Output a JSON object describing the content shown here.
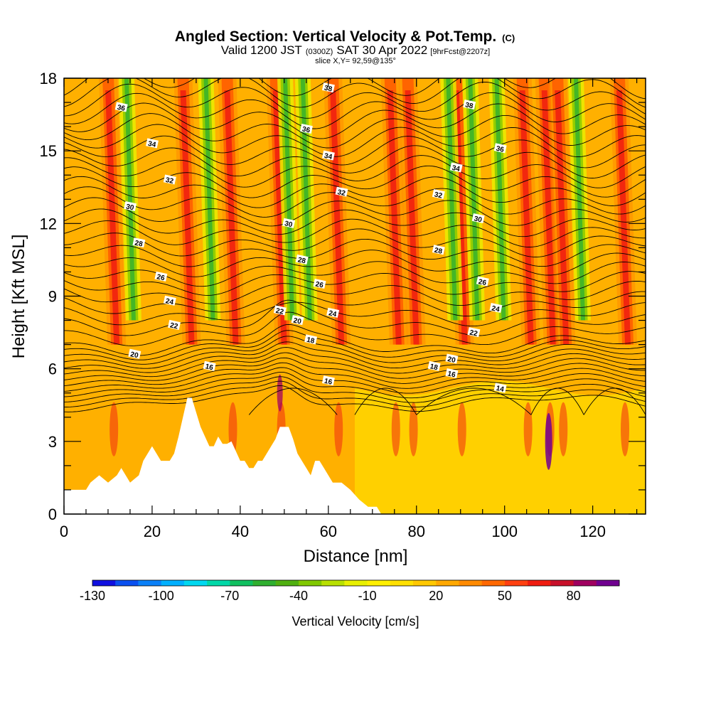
{
  "chart_data": {
    "type": "heatmap",
    "title": "Angled Section: Vertical Velocity & Pot.Temp.",
    "title_unit": "(C)",
    "subtitle": {
      "valid_prefix": "Valid 1200 JST",
      "utc": "(0300Z)",
      "date": "SAT 30 Apr 2022",
      "forecast": "[9hrFcst@2207z]"
    },
    "slice_label": "slice X,Y= 92,59@135°",
    "xlabel": "Distance [nm]",
    "ylabel": "Height [Kft MSL]",
    "xlim": [
      0,
      132
    ],
    "ylim": [
      0,
      18
    ],
    "xticks": [
      "0",
      "20",
      "40",
      "60",
      "80",
      "100",
      "120"
    ],
    "yticks": [
      "0",
      "3",
      "6",
      "9",
      "12",
      "15",
      "18"
    ],
    "colorbar": {
      "label": "Vertical Velocity [cm/s]",
      "tick_labels": [
        "-130",
        "-100",
        "-70",
        "-40",
        "-10",
        "20",
        "50",
        "80"
      ],
      "levels": [
        -130,
        -120,
        -110,
        -100,
        -90,
        -80,
        -70,
        -60,
        -50,
        -40,
        -30,
        -20,
        -10,
        0,
        10,
        20,
        30,
        40,
        50,
        60,
        70,
        80,
        90
      ],
      "colors": [
        "#1010e0",
        "#0a50f0",
        "#0a80f8",
        "#00b0ff",
        "#00d8f0",
        "#00d8a8",
        "#10c060",
        "#30b030",
        "#50b010",
        "#80c800",
        "#b8e000",
        "#e8f000",
        "#fff000",
        "#ffe000",
        "#ffc800",
        "#ffa800",
        "#ff8a00",
        "#ff6800",
        "#ff4010",
        "#f01c10",
        "#c8102a",
        "#a00060",
        "#700090"
      ]
    },
    "updraft_bands_x_nm": [
      11,
      28,
      38,
      49,
      62,
      75,
      79,
      90,
      105,
      110,
      113,
      127
    ],
    "downdraft_bands_x_nm": [
      15,
      33,
      51,
      55,
      88,
      93,
      99,
      117
    ],
    "pot_temp_contours": {
      "unit": "C",
      "labels": [
        {
          "text": "36",
          "x": 13,
          "y": 16.8
        },
        {
          "text": "34",
          "x": 20,
          "y": 15.3
        },
        {
          "text": "32",
          "x": 24,
          "y": 13.8
        },
        {
          "text": "30",
          "x": 15,
          "y": 12.7
        },
        {
          "text": "28",
          "x": 17,
          "y": 11.2
        },
        {
          "text": "26",
          "x": 22,
          "y": 9.8
        },
        {
          "text": "24",
          "x": 24,
          "y": 8.8
        },
        {
          "text": "22",
          "x": 25,
          "y": 7.8
        },
        {
          "text": "20",
          "x": 16,
          "y": 6.6
        },
        {
          "text": "16",
          "x": 33,
          "y": 6.1
        },
        {
          "text": "38",
          "x": 60,
          "y": 17.6
        },
        {
          "text": "36",
          "x": 55,
          "y": 15.9
        },
        {
          "text": "34",
          "x": 60,
          "y": 14.8
        },
        {
          "text": "32",
          "x": 63,
          "y": 13.3
        },
        {
          "text": "30",
          "x": 51,
          "y": 12.0
        },
        {
          "text": "28",
          "x": 54,
          "y": 10.5
        },
        {
          "text": "26",
          "x": 58,
          "y": 9.5
        },
        {
          "text": "22",
          "x": 49,
          "y": 8.4
        },
        {
          "text": "24",
          "x": 61,
          "y": 8.3
        },
        {
          "text": "20",
          "x": 53,
          "y": 8.0
        },
        {
          "text": "18",
          "x": 56,
          "y": 7.2
        },
        {
          "text": "16",
          "x": 60,
          "y": 5.5
        },
        {
          "text": "38",
          "x": 92,
          "y": 16.9
        },
        {
          "text": "36",
          "x": 99,
          "y": 15.1
        },
        {
          "text": "34",
          "x": 89,
          "y": 14.3
        },
        {
          "text": "32",
          "x": 85,
          "y": 13.2
        },
        {
          "text": "30",
          "x": 94,
          "y": 12.2
        },
        {
          "text": "28",
          "x": 85,
          "y": 10.9
        },
        {
          "text": "26",
          "x": 95,
          "y": 9.6
        },
        {
          "text": "24",
          "x": 98,
          "y": 8.5
        },
        {
          "text": "22",
          "x": 93,
          "y": 7.5
        },
        {
          "text": "20",
          "x": 88,
          "y": 6.4
        },
        {
          "text": "18",
          "x": 84,
          "y": 6.1
        },
        {
          "text": "16",
          "x": 88,
          "y": 5.8
        },
        {
          "text": "14",
          "x": 99,
          "y": 5.2
        }
      ]
    },
    "terrain_profile": [
      [
        0,
        1.0
      ],
      [
        5,
        1.0
      ],
      [
        6,
        1.3
      ],
      [
        8,
        1.6
      ],
      [
        10,
        1.3
      ],
      [
        12,
        1.6
      ],
      [
        13,
        1.9
      ],
      [
        14,
        1.6
      ],
      [
        15,
        1.3
      ],
      [
        17,
        1.6
      ],
      [
        18,
        2.2
      ],
      [
        19,
        2.5
      ],
      [
        20,
        2.8
      ],
      [
        22,
        2.2
      ],
      [
        24,
        2.2
      ],
      [
        25,
        2.5
      ],
      [
        26,
        3.2
      ],
      [
        27,
        4.0
      ],
      [
        28,
        4.8
      ],
      [
        29,
        4.8
      ],
      [
        30,
        4.2
      ],
      [
        31,
        3.6
      ],
      [
        32,
        3.2
      ],
      [
        33,
        2.8
      ],
      [
        34,
        2.8
      ],
      [
        35,
        3.2
      ],
      [
        36,
        2.9
      ],
      [
        37,
        2.9
      ],
      [
        38,
        3.0
      ],
      [
        39,
        2.6
      ],
      [
        40,
        2.2
      ],
      [
        41,
        2.2
      ],
      [
        42,
        1.9
      ],
      [
        43,
        1.9
      ],
      [
        44,
        2.2
      ],
      [
        45,
        2.2
      ],
      [
        46,
        2.5
      ],
      [
        47,
        2.8
      ],
      [
        48,
        3.1
      ],
      [
        49,
        3.6
      ],
      [
        51,
        3.6
      ],
      [
        52,
        3.1
      ],
      [
        53,
        2.5
      ],
      [
        54,
        2.2
      ],
      [
        55,
        1.9
      ],
      [
        56,
        1.6
      ],
      [
        57,
        2.2
      ],
      [
        58,
        2.2
      ],
      [
        59,
        1.9
      ],
      [
        60,
        1.6
      ],
      [
        61,
        1.3
      ],
      [
        62,
        1.3
      ],
      [
        63,
        1.3
      ],
      [
        65,
        1.0
      ],
      [
        67,
        0.6
      ],
      [
        69,
        0.3
      ],
      [
        71,
        0.3
      ],
      [
        72,
        0.0
      ],
      [
        132,
        0.0
      ]
    ]
  }
}
